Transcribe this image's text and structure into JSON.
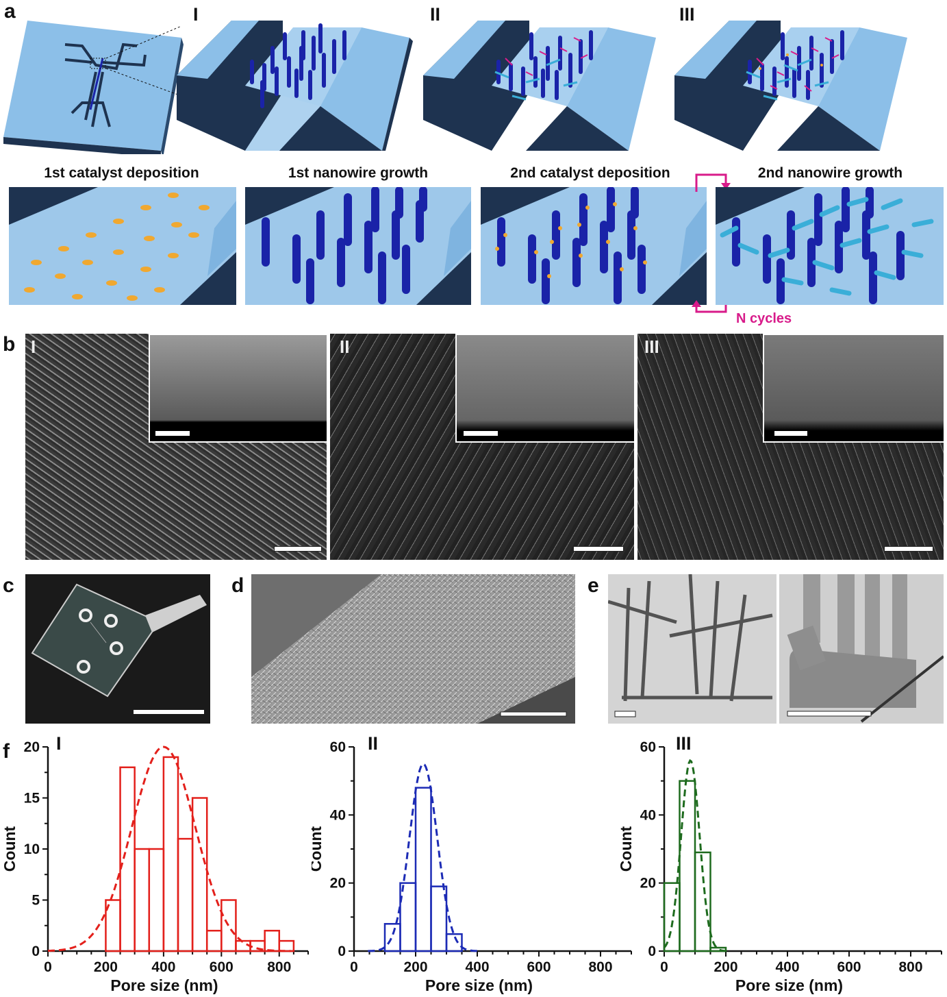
{
  "panels": {
    "a": "a",
    "b": "b",
    "c": "c",
    "d": "d",
    "e": "e",
    "f": "f"
  },
  "roman": {
    "i": "I",
    "ii": "II",
    "iii": "III"
  },
  "steps": {
    "step1": "1st catalyst deposition",
    "step2": "1st nanowire growth",
    "step3": "2nd catalyst deposition",
    "step4": "2nd nanowire growth",
    "cycle": "N cycles"
  },
  "colors": {
    "channel_top": "#7fb4e0",
    "channel_side": "#1e3350",
    "nanowire": "#1a23a8",
    "branch": "#3aaed8",
    "catalyst": "#f0a830",
    "cycle_arrow": "#d81b8a",
    "hist1": "#e3201b",
    "hist2": "#1c2bb5",
    "hist3": "#1e6b1e"
  },
  "chart_data": [
    {
      "type": "bar",
      "panel": "I",
      "title": "I",
      "xlabel": "Pore size (nm)",
      "ylabel": "Count",
      "xlim": [
        0,
        900
      ],
      "ylim": [
        0,
        20
      ],
      "xticks": [
        0,
        200,
        400,
        600,
        800
      ],
      "yticks": [
        0,
        5,
        10,
        15,
        20
      ],
      "bin_width": 50,
      "bin_starts": [
        200,
        250,
        300,
        350,
        400,
        450,
        500,
        550,
        600,
        650,
        700,
        750,
        800
      ],
      "values": [
        5,
        18,
        10,
        10,
        19,
        11,
        15,
        2,
        5,
        1,
        1,
        2,
        1
      ],
      "fit": {
        "type": "gaussian",
        "mean": 400,
        "sd": 110,
        "peak": 20
      }
    },
    {
      "type": "bar",
      "panel": "II",
      "title": "II",
      "xlabel": "Pore size (nm)",
      "ylabel": "Count",
      "xlim": [
        0,
        900
      ],
      "ylim": [
        0,
        60
      ],
      "xticks": [
        0,
        200,
        400,
        600,
        800
      ],
      "yticks": [
        0,
        20,
        40,
        60
      ],
      "bin_width": 50,
      "bin_starts": [
        100,
        150,
        200,
        250,
        300
      ],
      "values": [
        8,
        20,
        48,
        19,
        5
      ],
      "fit": {
        "type": "gaussian",
        "mean": 225,
        "sd": 45,
        "peak": 55
      }
    },
    {
      "type": "bar",
      "panel": "III",
      "title": "III",
      "xlabel": "Pore size (nm)",
      "ylabel": "Count",
      "xlim": [
        0,
        900
      ],
      "ylim": [
        0,
        60
      ],
      "xticks": [
        0,
        200,
        400,
        600,
        800
      ],
      "yticks": [
        0,
        20,
        40,
        60
      ],
      "bin_width": 50,
      "bin_starts": [
        0,
        50,
        100,
        150
      ],
      "values": [
        20,
        50,
        29,
        1
      ],
      "fit": {
        "type": "gaussian",
        "mean": 85,
        "sd": 30,
        "peak": 56
      }
    }
  ]
}
